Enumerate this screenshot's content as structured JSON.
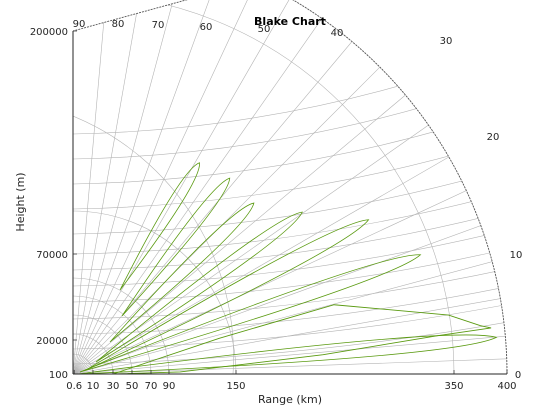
{
  "chart_data": {
    "type": "line",
    "title": "Blake Chart",
    "xlabel": "Range (km)",
    "ylabel": "Height (m)",
    "x_ticks": [
      "0.6",
      "10",
      "30",
      "50",
      "70",
      "90",
      "150",
      "350",
      "400"
    ],
    "y_ticks": [
      "100",
      "20000",
      "70000",
      "200000"
    ],
    "angle_ticks_top": [
      "90",
      "80",
      "70",
      "60",
      "50",
      "40",
      "30"
    ],
    "angle_ticks_right": [
      "20",
      "10",
      "0"
    ],
    "xlim": [
      0,
      400
    ],
    "ylim": [
      100,
      200000
    ],
    "grid": true,
    "series": [
      {
        "values": [
          {
            "range_km": 30,
            "height_m": 100
          },
          {
            "range_km": 135,
            "height_m": 21000
          },
          {
            "range_km": 240,
            "height_m": 40500
          },
          {
            "range_km": 345,
            "height_m": 34500
          },
          {
            "range_km": 375,
            "height_m": 28300
          },
          {
            "range_km": 385,
            "height_m": 27000
          },
          {
            "range_km": 335,
            "height_m": 22500
          },
          {
            "range_km": 230,
            "height_m": 11400
          },
          {
            "range_km": 100,
            "height_m": 1300
          },
          {
            "range_km": 30,
            "height_m": 100
          }
        ]
      }
    ],
    "colors": {
      "curve": "#5a9a10",
      "grid": "#b4b4b4",
      "axis": "#262626"
    }
  }
}
